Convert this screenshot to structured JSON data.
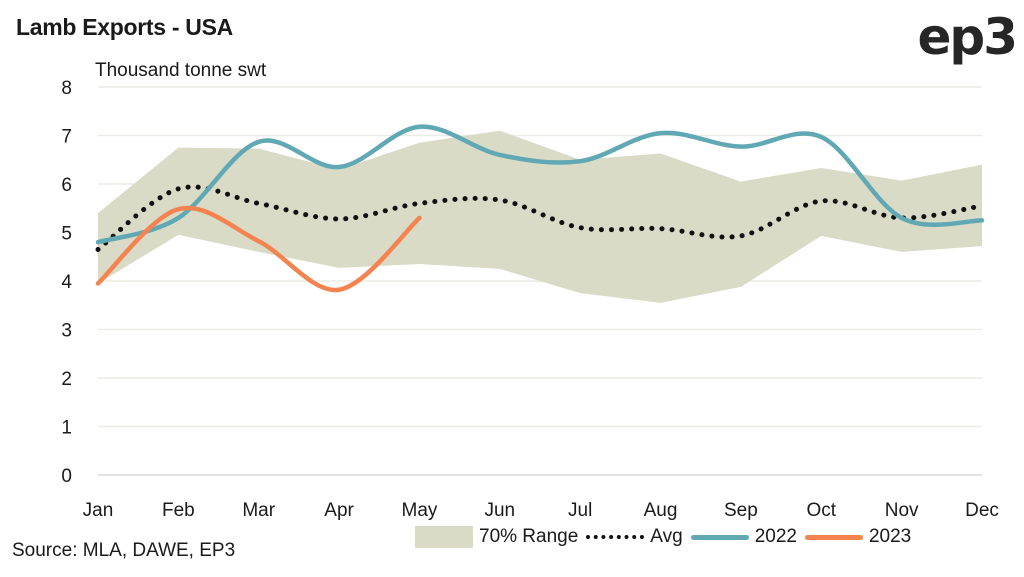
{
  "header": {
    "title": "Lamb Exports - USA",
    "logo": "ep3",
    "unit_label": "Thousand tonne swt"
  },
  "footer": {
    "source": "Source: MLA, DAWE, EP3"
  },
  "chart_data": {
    "type": "line",
    "title": "Lamb Exports - USA",
    "ylabel": "Thousand tonne swt",
    "xlabel": "",
    "ylim": [
      0,
      8
    ],
    "yticks": [
      "0",
      "1",
      "2",
      "3",
      "4",
      "5",
      "6",
      "7",
      "8"
    ],
    "categories": [
      "Jan",
      "Feb",
      "Mar",
      "Apr",
      "May",
      "Jun",
      "Jul",
      "Aug",
      "Sep",
      "Oct",
      "Nov",
      "Dec"
    ],
    "grid": "horizontal",
    "legend_position": "bottom-right",
    "range": {
      "name": "70% Range",
      "color": "#d9dbc6",
      "upper": [
        5.4,
        6.75,
        6.73,
        6.3,
        6.85,
        7.1,
        6.5,
        6.63,
        6.05,
        6.33,
        6.07,
        6.4
      ],
      "lower": [
        3.95,
        4.95,
        4.6,
        4.27,
        4.35,
        4.25,
        3.75,
        3.55,
        3.88,
        4.93,
        4.6,
        4.72
      ]
    },
    "series": [
      {
        "name": "Avg",
        "style": "dotted",
        "color": "#111111",
        "values": [
          4.65,
          5.9,
          5.6,
          5.28,
          5.6,
          5.67,
          5.1,
          5.08,
          4.93,
          5.65,
          5.3,
          5.55
        ]
      },
      {
        "name": "2022",
        "style": "solid",
        "color": "#5fa8b4",
        "values": [
          4.8,
          5.3,
          6.87,
          6.35,
          7.18,
          6.6,
          6.47,
          7.05,
          6.77,
          6.97,
          5.3,
          5.25
        ]
      },
      {
        "name": "2023",
        "style": "solid",
        "color": "#f5834f",
        "values": [
          3.95,
          5.48,
          4.82,
          3.82,
          5.3
        ]
      }
    ]
  }
}
